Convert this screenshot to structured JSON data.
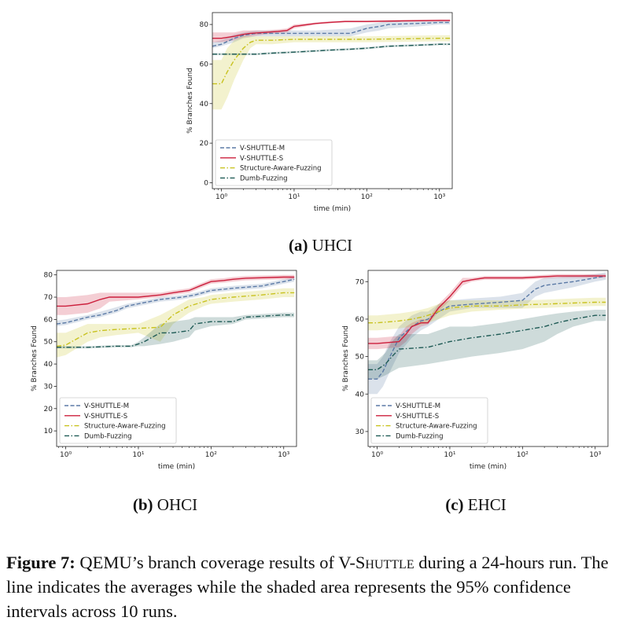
{
  "figure": {
    "label": "Figure 7:",
    "caption_a": "QEMU’s branch coverage results of V-",
    "caption_sc": "Shuttle",
    "caption_b": " during a 24-hours run. The line indicates the averages while the shaded area represents the 95% confidence intervals across 10 runs.",
    "subcaptions": [
      {
        "letter": "(a)",
        "name": "UHCI"
      },
      {
        "letter": "(b)",
        "name": "OHCI"
      },
      {
        "letter": "(c)",
        "name": "EHCI"
      }
    ]
  },
  "colors": {
    "vm": "#5b7aa6",
    "vs": "#cc1f3c",
    "saf": "#c8c21e",
    "dumb": "#1e5a55"
  },
  "chart_data": [
    {
      "type": "line",
      "id": "uhci",
      "xlabel": "time (min)",
      "ylabel": "% Branches Found",
      "xscale": "log",
      "xlim": [
        0.75,
        1500
      ],
      "ylim": [
        -3,
        86
      ],
      "xticks": [
        1,
        10,
        100,
        1000
      ],
      "xtick_labels": [
        "10⁰",
        "10¹",
        "10²",
        "10³"
      ],
      "yticks": [
        0,
        20,
        40,
        60,
        80
      ],
      "legend_position": "lower-left",
      "series": [
        {
          "name": "V-SHUTTLE-M",
          "key": "vm",
          "dash": "dashed",
          "x": [
            0.75,
            1,
            1.5,
            2,
            3,
            5,
            8,
            20,
            60,
            100,
            150,
            200,
            500,
            1000,
            1400
          ],
          "y": [
            69,
            70,
            73,
            74.5,
            75.5,
            75.5,
            75.5,
            75.5,
            75.5,
            78,
            79,
            80,
            80.5,
            81,
            81
          ],
          "lower": [
            68,
            69,
            71,
            73,
            74,
            74,
            74,
            74,
            74,
            76,
            77,
            78,
            79,
            80,
            80
          ],
          "upper": [
            71,
            72,
            75,
            76,
            77,
            77,
            77,
            77,
            78,
            80,
            81,
            82,
            82,
            82,
            82
          ]
        },
        {
          "name": "V-SHUTTLE-S",
          "key": "vs",
          "dash": "solid",
          "x": [
            0.75,
            1,
            1.5,
            2,
            2.5,
            4,
            6,
            8,
            10,
            20,
            30,
            50,
            100,
            300,
            1000,
            1400
          ],
          "y": [
            73,
            73,
            74,
            75,
            75.5,
            76,
            76.5,
            77,
            79,
            80.5,
            81,
            81.5,
            81.5,
            81.8,
            82,
            82
          ],
          "lower": [
            71,
            71,
            72,
            73.5,
            74,
            75,
            75.5,
            76,
            78,
            80,
            80.5,
            81,
            81,
            81.3,
            81.5,
            81.5
          ],
          "upper": [
            76,
            76,
            76,
            77,
            77,
            77,
            77.5,
            78,
            80,
            81,
            81.5,
            82,
            82,
            82.3,
            82.5,
            82.5
          ]
        },
        {
          "name": "Structure-Aware-Fuzzing",
          "key": "saf",
          "dash": "dashdot",
          "x": [
            0.75,
            1,
            1.2,
            1.5,
            2,
            2.5,
            3,
            5,
            10,
            100,
            1000,
            1400
          ],
          "y": [
            50,
            50,
            56,
            62,
            68,
            71,
            72,
            72,
            72.5,
            72.5,
            73,
            73
          ],
          "lower": [
            37,
            37,
            43,
            52,
            62,
            68,
            70,
            70,
            71,
            71,
            71.5,
            71.5
          ],
          "upper": [
            62,
            62,
            68,
            72,
            74,
            74,
            74,
            74,
            74,
            74,
            74.5,
            74.5
          ]
        },
        {
          "name": "Dumb-Fuzzing",
          "key": "dumb",
          "dash": "dashdot",
          "x": [
            0.75,
            1,
            2,
            3,
            5,
            10,
            30,
            60,
            100,
            200,
            500,
            1000,
            1400
          ],
          "y": [
            65,
            65,
            65,
            65,
            65.5,
            66,
            67,
            67.5,
            68,
            69,
            69.5,
            70,
            70
          ],
          "lower": [
            64.5,
            64.5,
            64.5,
            64.5,
            65,
            65.5,
            66.5,
            67,
            67.5,
            68.5,
            69,
            69.5,
            69.5
          ],
          "upper": [
            65.5,
            65.5,
            65.5,
            65.5,
            66,
            66.5,
            67.5,
            68,
            68.5,
            69.5,
            70,
            70.5,
            70.5
          ]
        }
      ]
    },
    {
      "type": "line",
      "id": "ohci",
      "xlabel": "time (min)",
      "ylabel": "% Branches Found",
      "xscale": "log",
      "xlim": [
        0.75,
        1500
      ],
      "ylim": [
        3,
        82
      ],
      "xticks": [
        1,
        10,
        100,
        1000
      ],
      "xtick_labels": [
        "10⁰",
        "10¹",
        "10²",
        "10³"
      ],
      "yticks": [
        10,
        20,
        30,
        40,
        50,
        60,
        70,
        80
      ],
      "legend_position": "lower-left",
      "series": [
        {
          "name": "V-SHUTTLE-M",
          "key": "vm",
          "dash": "dashed",
          "x": [
            0.75,
            1,
            2,
            3,
            5,
            7,
            10,
            20,
            40,
            60,
            100,
            200,
            500,
            1000,
            1400
          ],
          "y": [
            58,
            58.5,
            61,
            62,
            64,
            66,
            67,
            69,
            70,
            71,
            73,
            74,
            75,
            77,
            78
          ],
          "lower": [
            57,
            57.5,
            60,
            61,
            63,
            65,
            66,
            68,
            69,
            70,
            72,
            73,
            74,
            76,
            77
          ],
          "upper": [
            59.5,
            60,
            62,
            63.5,
            65.5,
            67,
            68,
            70,
            71,
            72,
            74,
            75,
            76,
            78,
            79
          ]
        },
        {
          "name": "V-SHUTTLE-S",
          "key": "vs",
          "dash": "solid",
          "x": [
            0.75,
            1,
            2,
            3,
            4,
            10,
            20,
            30,
            50,
            70,
            100,
            150,
            200,
            300,
            1000,
            1400
          ],
          "y": [
            66,
            66,
            67,
            69,
            70,
            70,
            71,
            72,
            73,
            75,
            77,
            77.5,
            78,
            78.5,
            79,
            79
          ],
          "lower": [
            62,
            62,
            63,
            65,
            68,
            69,
            70,
            71,
            72,
            74,
            76,
            76.5,
            77,
            77.5,
            78,
            78
          ],
          "upper": [
            70,
            70,
            71,
            72,
            72,
            72,
            72,
            73,
            74,
            76,
            78,
            78.5,
            79,
            79.5,
            80,
            80
          ]
        },
        {
          "name": "Structure-Aware-Fuzzing",
          "key": "saf",
          "dash": "dashdot",
          "x": [
            0.75,
            1,
            2,
            3,
            5,
            10,
            20,
            30,
            50,
            80,
            100,
            200,
            500,
            1000,
            1400
          ],
          "y": [
            48,
            48.5,
            54,
            55,
            55.5,
            56,
            56.5,
            62,
            66,
            68,
            69,
            70,
            71,
            72,
            72
          ],
          "lower": [
            43,
            44,
            50,
            52,
            53,
            54,
            50,
            58,
            63,
            66,
            67,
            68,
            69,
            70,
            70
          ],
          "upper": [
            54,
            54,
            58,
            58,
            58,
            58,
            62,
            65,
            69,
            70,
            71,
            72,
            73,
            74,
            74
          ]
        },
        {
          "name": "Dumb-Fuzzing",
          "key": "dumb",
          "dash": "dashdot",
          "x": [
            0.75,
            1,
            2,
            5,
            8,
            10,
            12,
            20,
            30,
            50,
            60,
            100,
            200,
            300,
            1000,
            1400
          ],
          "y": [
            47.5,
            47.5,
            47.5,
            48,
            48,
            49,
            50,
            54,
            54,
            55,
            58,
            59,
            59,
            61,
            62,
            62
          ],
          "lower": [
            47,
            47,
            47,
            47.5,
            47.5,
            48,
            48,
            49,
            50,
            52,
            55,
            57,
            58,
            60,
            61,
            61
          ],
          "upper": [
            48,
            48,
            48,
            48.5,
            48.5,
            50,
            52,
            58,
            59,
            60,
            61,
            61,
            61,
            62,
            63,
            63
          ]
        }
      ]
    },
    {
      "type": "line",
      "id": "ehci",
      "xlabel": "time (min)",
      "ylabel": "% Branches Found",
      "xscale": "log",
      "xlim": [
        0.75,
        1500
      ],
      "ylim": [
        26,
        73
      ],
      "xticks": [
        1,
        10,
        100,
        1000
      ],
      "xtick_labels": [
        "10⁰",
        "10¹",
        "10²",
        "10³"
      ],
      "yticks": [
        30,
        40,
        50,
        60,
        70
      ],
      "legend_position": "lower-left",
      "series": [
        {
          "name": "V-SHUTTLE-M",
          "key": "vm",
          "dash": "dashed",
          "x": [
            0.75,
            1,
            1.2,
            1.5,
            2,
            3,
            4,
            5,
            7,
            10,
            20,
            50,
            100,
            150,
            200,
            500,
            1000,
            1400
          ],
          "y": [
            44,
            44,
            46,
            50,
            55,
            58,
            59.5,
            60,
            62,
            63.5,
            64,
            64.5,
            65,
            68,
            69,
            70,
            71,
            71.5
          ],
          "lower": [
            40,
            40,
            42,
            46,
            51,
            55,
            57,
            58,
            60,
            62,
            63,
            63,
            63,
            66,
            67,
            68.5,
            70,
            70.5
          ],
          "upper": [
            48,
            48,
            50,
            54,
            58,
            61,
            62,
            62,
            64,
            65,
            65.5,
            66,
            67,
            70,
            71,
            71.5,
            72,
            72.5
          ]
        },
        {
          "name": "V-SHUTTLE-S",
          "key": "vs",
          "dash": "solid",
          "x": [
            0.75,
            1,
            2,
            2.5,
            3,
            4,
            5,
            7,
            10,
            15,
            20,
            30,
            100,
            300,
            1000,
            1400
          ],
          "y": [
            53.5,
            53.5,
            54,
            56,
            58,
            59,
            59,
            63,
            66,
            70,
            70.5,
            71,
            71,
            71.5,
            71.5,
            71.5
          ],
          "lower": [
            52,
            52,
            52.5,
            54,
            56,
            58,
            58.5,
            62,
            65,
            69,
            70,
            70.5,
            70.5,
            71,
            71,
            71
          ],
          "upper": [
            55,
            55,
            55.5,
            58,
            59,
            60,
            60,
            64,
            67,
            71,
            71,
            71.5,
            71.5,
            72,
            72,
            72
          ]
        },
        {
          "name": "Structure-Aware-Fuzzing",
          "key": "saf",
          "dash": "dashdot",
          "x": [
            0.75,
            1,
            2,
            3,
            4,
            5,
            7,
            10,
            20,
            50,
            100,
            200,
            500,
            1000,
            1400
          ],
          "y": [
            59,
            59,
            59.5,
            60,
            60.5,
            61,
            62,
            63,
            63.5,
            63.5,
            63.8,
            64,
            64.3,
            64.5,
            64.5
          ],
          "lower": [
            57,
            57,
            57.5,
            58,
            58.5,
            59,
            60,
            61,
            62,
            62.5,
            62.8,
            63,
            63.3,
            63.5,
            63.5
          ],
          "upper": [
            61,
            61,
            61.5,
            62,
            62.5,
            63,
            64,
            65,
            65,
            65,
            65,
            65.2,
            65.5,
            65.7,
            65.7
          ]
        },
        {
          "name": "Dumb-Fuzzing",
          "key": "dumb",
          "dash": "dashdot",
          "x": [
            0.75,
            1,
            1.3,
            1.6,
            2,
            5,
            10,
            20,
            50,
            100,
            200,
            300,
            500,
            1000,
            1400
          ],
          "y": [
            46.5,
            46.5,
            48,
            50,
            52,
            52.5,
            54,
            55,
            56,
            57,
            58,
            59,
            60,
            61,
            61
          ],
          "lower": [
            44,
            44,
            45,
            46,
            47,
            48,
            49,
            50,
            51,
            52,
            54,
            56,
            58,
            59.5,
            59.5
          ],
          "upper": [
            49,
            49,
            51,
            54,
            56,
            56,
            58,
            58,
            59,
            60,
            61,
            61.5,
            62,
            62.5,
            62.5
          ]
        }
      ]
    }
  ]
}
